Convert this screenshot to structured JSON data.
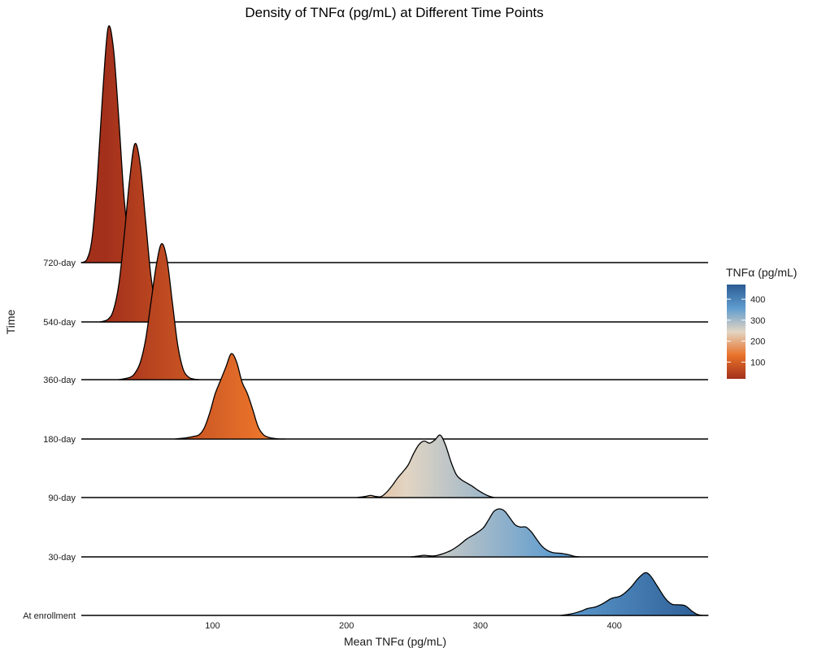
{
  "chart_data": {
    "type": "ridgeline",
    "title": "Density of TNFα (pg/mL) at Different Time Points",
    "xlabel": "Mean TNFα (pg/mL)",
    "ylabel": "Time",
    "xlim": [
      2,
      470
    ],
    "x_ticks": [
      100,
      200,
      300,
      400
    ],
    "grid": false,
    "legend": {
      "title": "TNFα (pg/mL)",
      "position": "right",
      "range": [
        20,
        470
      ],
      "ticks": [
        100,
        200,
        300,
        400
      ],
      "colors": [
        "#a3301b",
        "#e8722a",
        "#e2d5c3",
        "#5f9ccf",
        "#2a5b93"
      ]
    },
    "categories": [
      "At enrollment",
      "30-day",
      "90-day",
      "180-day",
      "360-day",
      "540-day",
      "720-day"
    ],
    "series": [
      {
        "name": "At enrollment",
        "x": [
          360,
          368,
          375,
          380,
          386,
          392,
          398,
          405,
          412,
          418,
          423,
          427,
          432,
          438,
          443,
          448,
          453,
          458,
          462,
          466,
          470
        ],
        "y": [
          0,
          0.03,
          0.08,
          0.13,
          0.16,
          0.23,
          0.32,
          0.37,
          0.52,
          0.7,
          0.8,
          0.74,
          0.55,
          0.32,
          0.21,
          0.2,
          0.18,
          0.08,
          0.02,
          0,
          0
        ]
      },
      {
        "name": "30-day",
        "x": [
          248,
          252,
          255,
          258,
          262,
          266,
          272,
          278,
          284,
          290,
          296,
          302,
          306,
          310,
          314,
          318,
          322,
          326,
          330,
          334,
          338,
          342,
          346,
          350,
          354,
          358,
          362,
          366,
          370,
          374
        ],
        "y": [
          0,
          0.01,
          0.02,
          0.03,
          0.02,
          0.02,
          0.06,
          0.12,
          0.22,
          0.34,
          0.43,
          0.54,
          0.69,
          0.85,
          0.9,
          0.86,
          0.73,
          0.6,
          0.56,
          0.56,
          0.47,
          0.33,
          0.2,
          0.12,
          0.08,
          0.07,
          0.06,
          0.04,
          0.01,
          0
        ]
      },
      {
        "name": "90-day",
        "x": [
          208,
          214,
          218,
          222,
          226,
          230,
          234,
          238,
          242,
          246,
          250,
          254,
          258,
          262,
          266,
          270,
          274,
          278,
          282,
          286,
          290,
          294,
          298,
          302,
          306,
          310
        ],
        "y": [
          0,
          0.02,
          0.04,
          0.02,
          0.02,
          0.1,
          0.22,
          0.36,
          0.48,
          0.61,
          0.82,
          0.99,
          1.06,
          1.02,
          1.08,
          1.17,
          0.98,
          0.67,
          0.43,
          0.33,
          0.27,
          0.21,
          0.14,
          0.08,
          0.03,
          0
        ]
      },
      {
        "name": "180-day",
        "x": [
          72,
          80,
          86,
          90,
          94,
          98,
          102,
          106,
          110,
          114,
          118,
          122,
          126,
          130,
          134,
          138,
          142,
          146,
          150,
          154
        ],
        "y": [
          0,
          0.02,
          0.05,
          0.08,
          0.22,
          0.5,
          0.85,
          1.1,
          1.35,
          1.6,
          1.44,
          1.07,
          0.85,
          0.55,
          0.23,
          0.08,
          0.03,
          0.01,
          0,
          0
        ]
      },
      {
        "name": "360-day",
        "x": [
          30,
          38,
          42,
          46,
          50,
          54,
          58,
          62,
          66,
          70,
          74,
          78,
          82,
          86,
          90
        ],
        "y": [
          0,
          0.04,
          0.12,
          0.32,
          0.75,
          1.45,
          2.15,
          2.55,
          2.25,
          1.45,
          0.65,
          0.2,
          0.05,
          0.01,
          0
        ]
      },
      {
        "name": "540-day",
        "x": [
          16,
          22,
          26,
          30,
          34,
          38,
          42,
          46,
          50,
          54,
          58,
          62,
          66,
          70
        ],
        "y": [
          0,
          0.05,
          0.22,
          0.7,
          1.6,
          2.65,
          3.34,
          2.95,
          1.9,
          0.85,
          0.28,
          0.06,
          0.01,
          0
        ]
      },
      {
        "name": "720-day",
        "x": [
          2,
          6,
          10,
          14,
          18,
          22,
          26,
          30,
          34,
          38,
          42,
          46
        ],
        "y": [
          0,
          0.05,
          0.45,
          1.6,
          3.2,
          4.4,
          4.02,
          2.7,
          1.2,
          0.35,
          0.06,
          0
        ]
      }
    ]
  }
}
